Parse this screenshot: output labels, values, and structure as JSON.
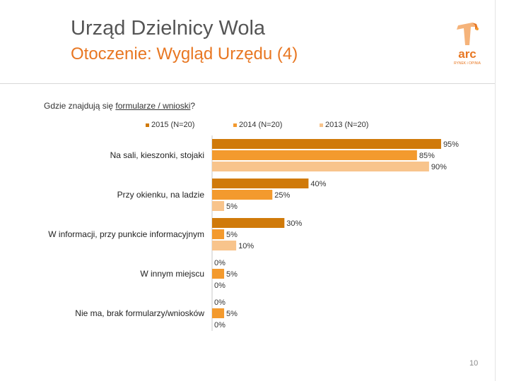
{
  "header": {
    "title": "Urząd Dzielnicy Wola",
    "subtitle": "Otoczenie: Wygląd Urzędu (4)"
  },
  "logo": {
    "icon": "arc-logo-icon",
    "text": "arc",
    "tagline": "RYNEK i OPINIA"
  },
  "question": {
    "prefix": "Gdzie znajdują się ",
    "underlined": "formularze / wnioski",
    "suffix": "?"
  },
  "page_number": "10",
  "colors": {
    "series_2015": "#d07a0a",
    "series_2014": "#f39a2e",
    "series_2013": "#f8c48c",
    "accent": "#e87722"
  },
  "chart_data": {
    "type": "bar",
    "orientation": "horizontal",
    "title": "Gdzie znajdują się formularze / wnioski?",
    "categories": [
      "Na sali, kieszonki, stojaki",
      "Przy okienku, na ladzie",
      "W informacji, przy punkcie informacyjnym",
      "W innym miejscu",
      "Nie ma, brak formularzy/wniosków"
    ],
    "series": [
      {
        "name": "2015 (N=20)",
        "values": [
          95,
          40,
          30,
          0,
          0
        ],
        "labels": [
          "95%",
          "40%",
          "30%",
          "0%",
          "0%"
        ]
      },
      {
        "name": "2014 (N=20)",
        "values": [
          85,
          25,
          5,
          5,
          5
        ],
        "labels": [
          "85%",
          "25%",
          "5%",
          "5%",
          "5%"
        ]
      },
      {
        "name": "2013 (N=20)",
        "values": [
          90,
          5,
          10,
          0,
          0
        ],
        "labels": [
          "90%",
          "5%",
          "10%",
          "0%",
          "0%"
        ]
      }
    ],
    "xlim": [
      0,
      100
    ],
    "legend_position": "top"
  }
}
